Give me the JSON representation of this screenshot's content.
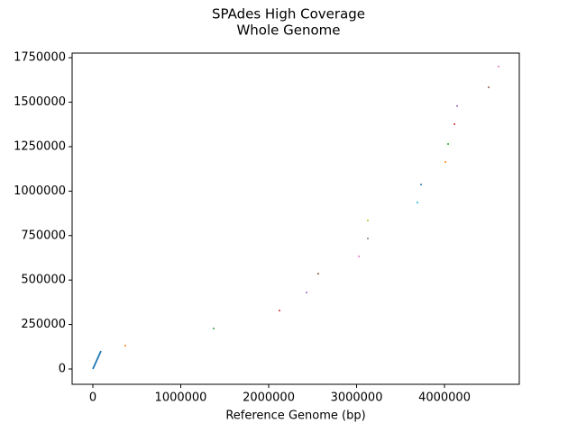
{
  "chart_data": {
    "type": "scatter",
    "title": [
      "SPAdes High Coverage",
      "Whole Genome"
    ],
    "x_label": "Reference Genome (bp)",
    "xlim": [
      -236000,
      4851000
    ],
    "ylim": [
      -86000,
      1776000
    ],
    "xticks": [
      0,
      1000000,
      2000000,
      3000000,
      4000000
    ],
    "yticks": [
      0,
      250000,
      500000,
      750000,
      1000000,
      1250000,
      1500000,
      1750000
    ],
    "series": [
      {
        "style": "line",
        "color": "#1f77b4",
        "x": [
          0,
          92000
        ],
        "values": [
          0,
          101000
        ]
      },
      {
        "style": "marker",
        "color": "#ff7f0e",
        "x": [
          369000
        ],
        "values": [
          131000
        ]
      },
      {
        "style": "marker",
        "color": "#2ca02c",
        "x": [
          1374000
        ],
        "values": [
          228000
        ]
      },
      {
        "style": "marker",
        "color": "#d62728",
        "x": [
          2123000
        ],
        "values": [
          329000
        ]
      },
      {
        "style": "marker",
        "color": "#9467bd",
        "x": [
          2431000
        ],
        "values": [
          430000
        ]
      },
      {
        "style": "marker",
        "color": "#8c564b",
        "x": [
          2564000
        ],
        "values": [
          536000
        ]
      },
      {
        "style": "marker",
        "color": "#e377c2",
        "x": [
          3026000
        ],
        "values": [
          633000
        ]
      },
      {
        "style": "marker",
        "color": "#7f7f7f",
        "x": [
          3128000
        ],
        "values": [
          734000
        ]
      },
      {
        "style": "marker",
        "color": "#bcbd22",
        "x": [
          3128000
        ],
        "values": [
          835000
        ]
      },
      {
        "style": "marker",
        "color": "#17becf",
        "x": [
          3692000
        ],
        "values": [
          936000
        ]
      },
      {
        "style": "marker",
        "color": "#1f77b4",
        "x": [
          3733000
        ],
        "values": [
          1037000
        ]
      },
      {
        "style": "marker",
        "color": "#ff7f0e",
        "x": [
          4010000
        ],
        "values": [
          1164000
        ]
      },
      {
        "style": "marker",
        "color": "#2ca02c",
        "x": [
          4041000
        ],
        "values": [
          1265000
        ]
      },
      {
        "style": "marker",
        "color": "#d62728",
        "x": [
          4113000
        ],
        "values": [
          1376000
        ]
      },
      {
        "style": "marker",
        "color": "#9467bd",
        "x": [
          4144000
        ],
        "values": [
          1478000
        ]
      },
      {
        "style": "marker",
        "color": "#8c564b",
        "x": [
          4503000
        ],
        "values": [
          1584000
        ]
      },
      {
        "style": "marker",
        "color": "#e377c2",
        "x": [
          4615000
        ],
        "values": [
          1700000
        ]
      }
    ]
  }
}
